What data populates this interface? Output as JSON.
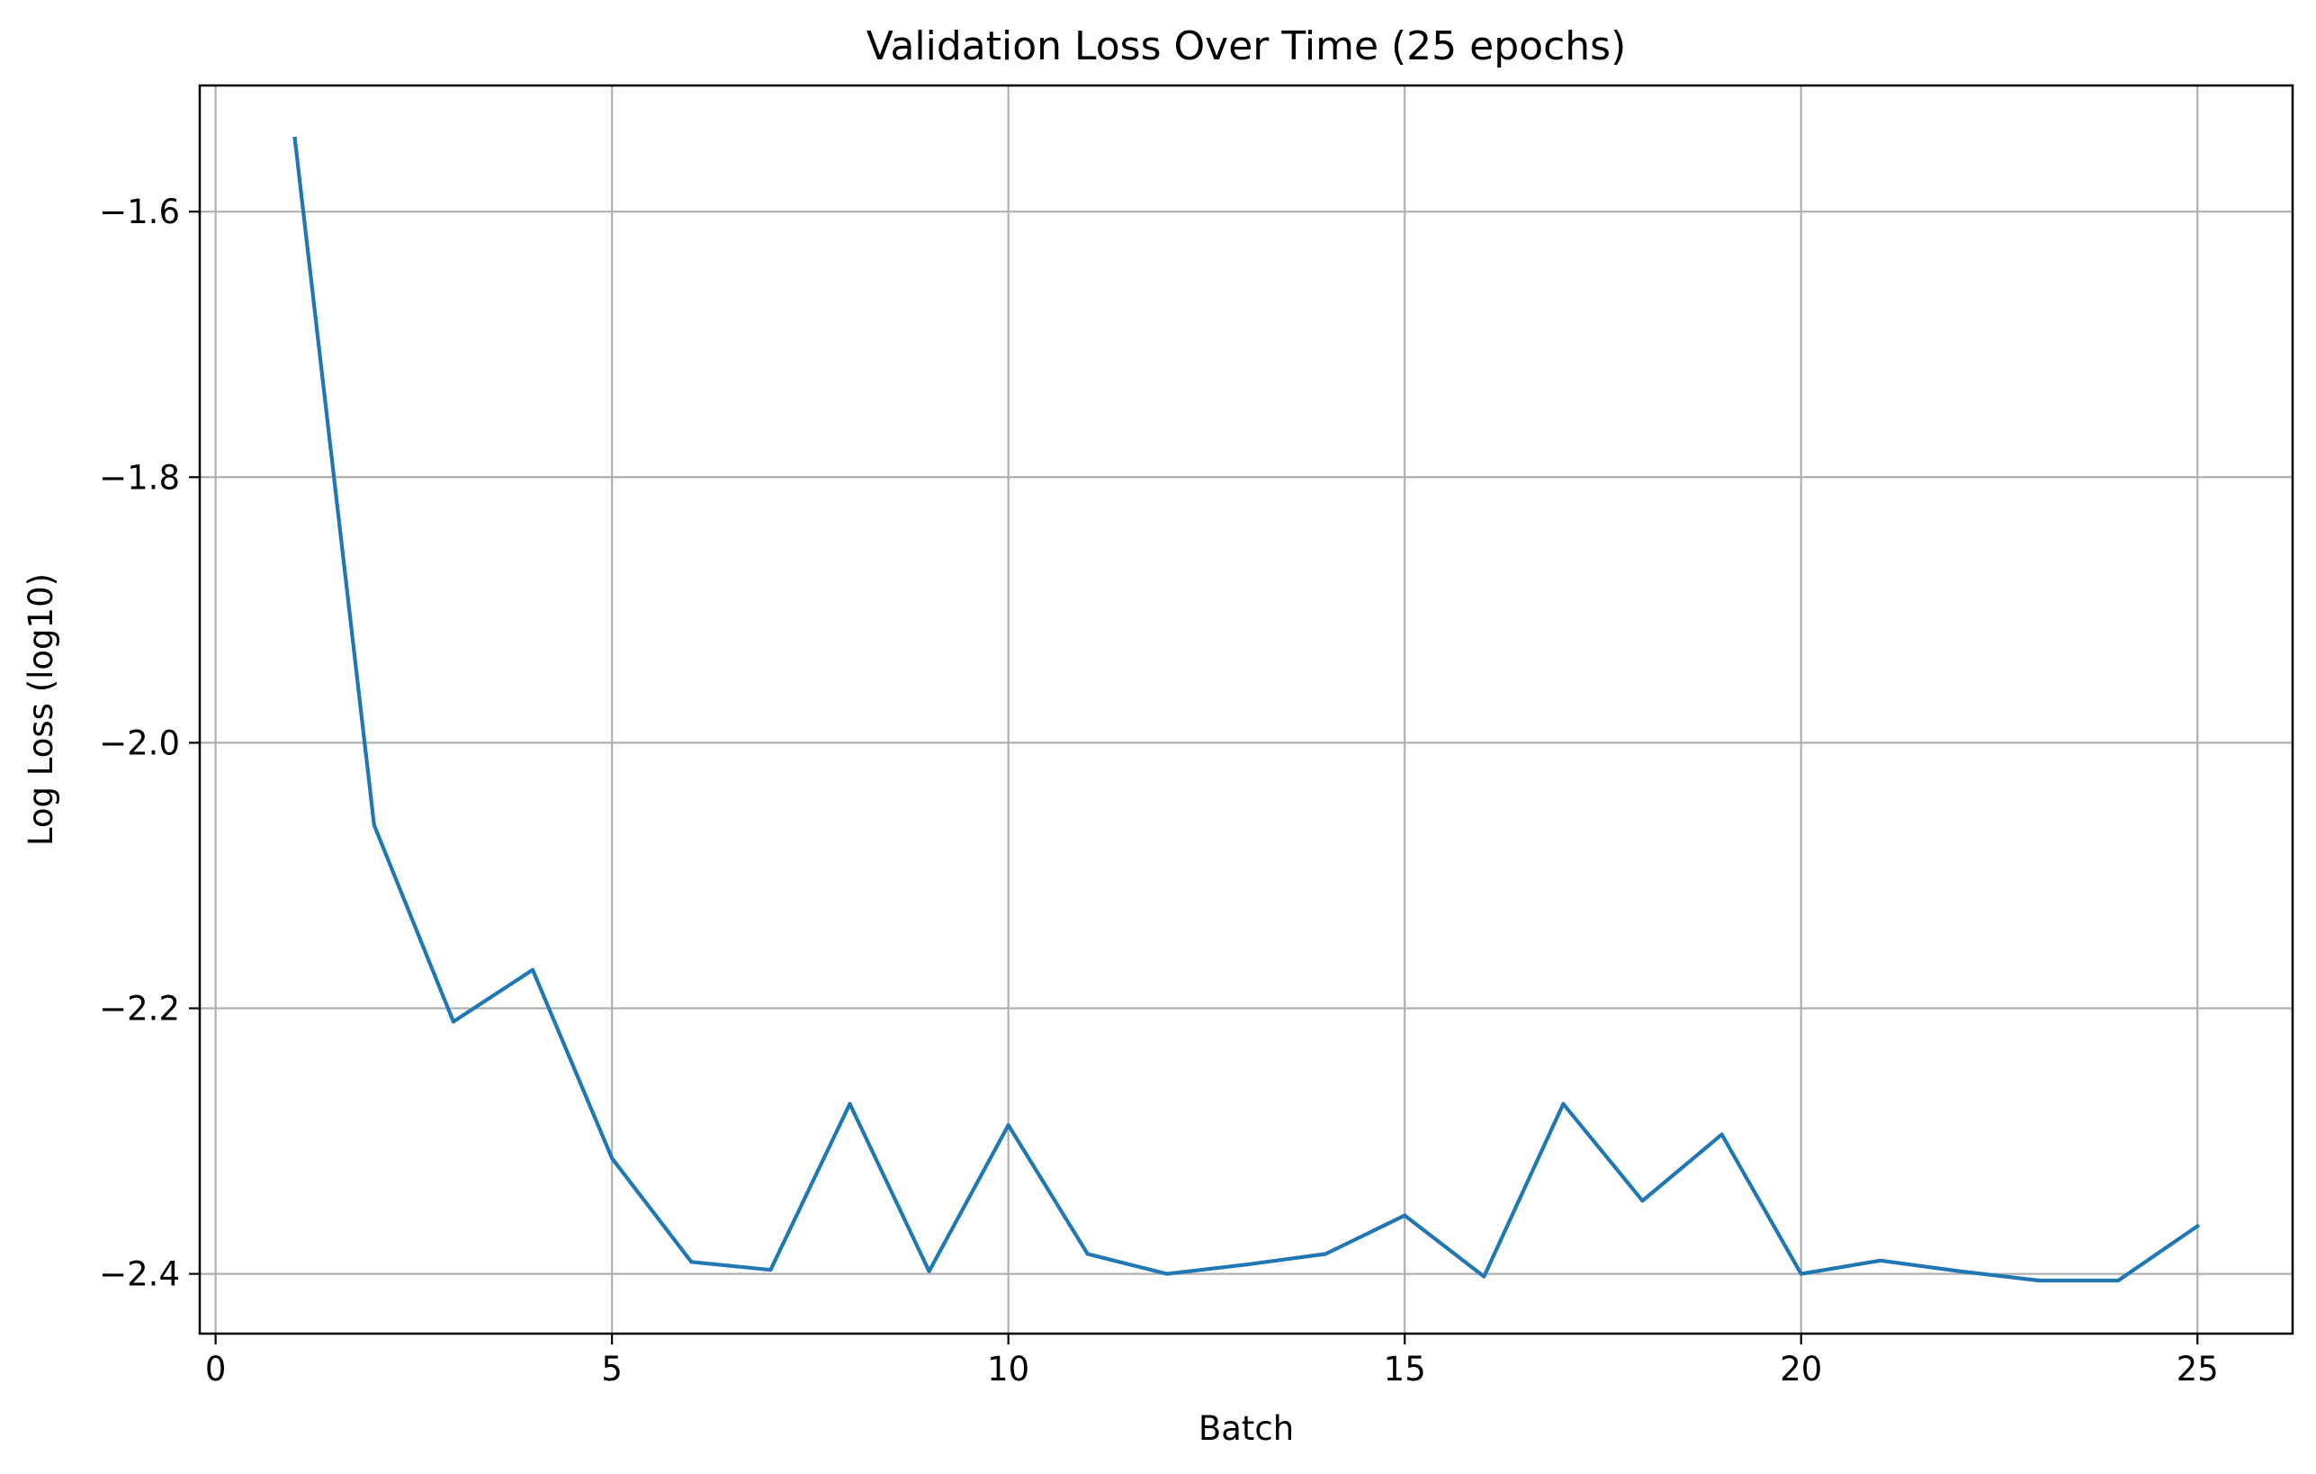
{
  "chart_data": {
    "type": "line",
    "title": "Validation Loss Over Time (25 epochs)",
    "xlabel": "Batch",
    "ylabel": "Log Loss (log10)",
    "xlim": [
      -0.2,
      26.2
    ],
    "ylim": [
      -2.445,
      -1.505
    ],
    "xticks": [
      0,
      5,
      10,
      15,
      20,
      25
    ],
    "xtick_labels": [
      "0",
      "5",
      "10",
      "15",
      "20",
      "25"
    ],
    "yticks": [
      -1.6,
      -1.8,
      -2.0,
      -2.2,
      -2.4
    ],
    "ytick_labels": [
      "−1.6",
      "−1.8",
      "−2.0",
      "−2.2",
      "−2.4"
    ],
    "grid": true,
    "series": [
      {
        "color": "#1f77b4",
        "x": [
          1,
          2,
          3,
          4,
          5,
          6,
          7,
          8,
          9,
          10,
          11,
          12,
          13,
          14,
          15,
          16,
          17,
          18,
          19,
          20,
          21,
          22,
          23,
          24,
          25
        ],
        "y": [
          -1.545,
          -2.062,
          -2.21,
          -2.171,
          -2.313,
          -2.391,
          -2.397,
          -2.272,
          -2.398,
          -2.288,
          -2.385,
          -2.4,
          -2.393,
          -2.385,
          -2.356,
          -2.402,
          -2.272,
          -2.345,
          -2.295,
          -2.4,
          -2.39,
          -2.398,
          -2.405,
          -2.405,
          -2.364
        ]
      }
    ]
  }
}
